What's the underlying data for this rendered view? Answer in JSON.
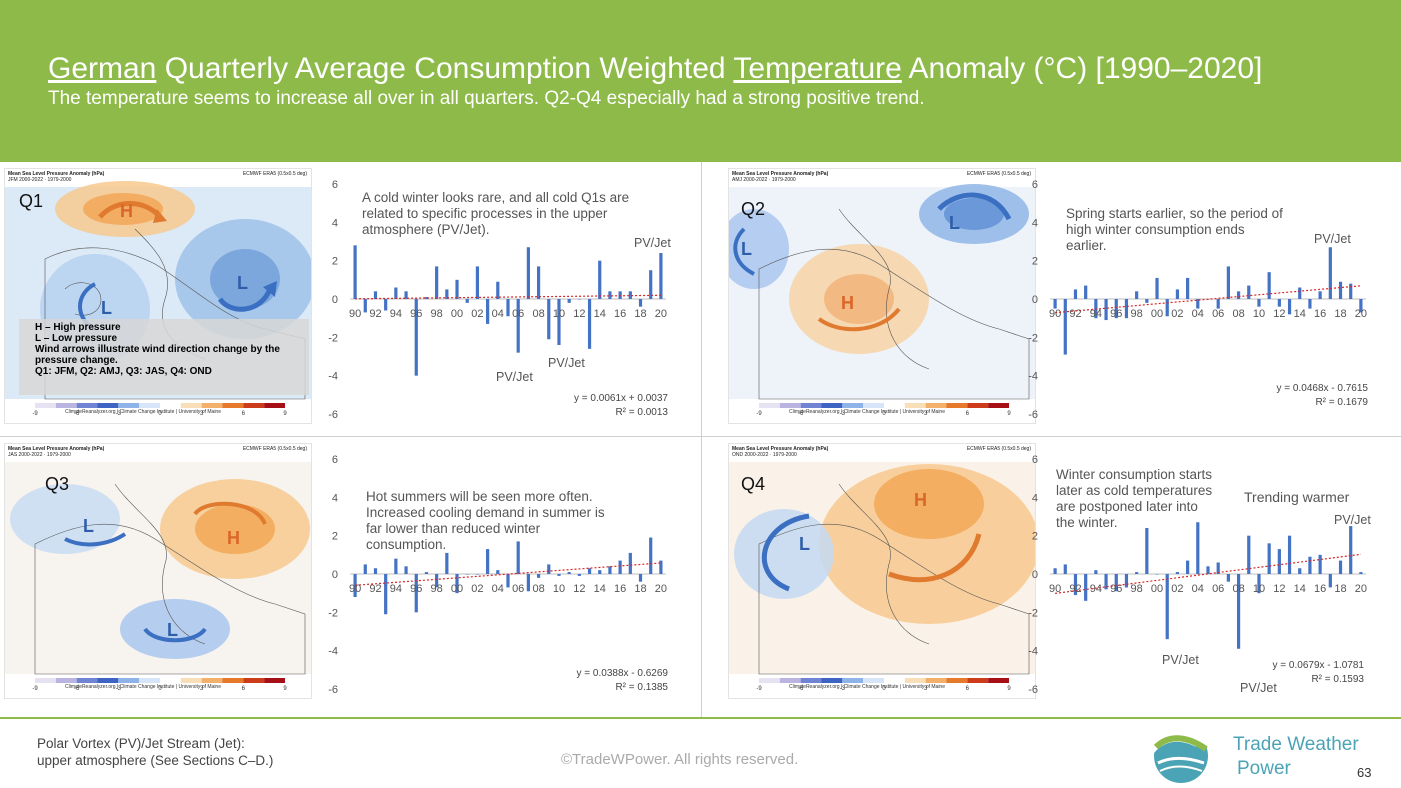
{
  "header": {
    "title_country": "German",
    "title_mid": " Quarterly Average Consumption Weighted ",
    "title_temp": "Temperature",
    "title_tail": " Anomaly (°C) [1990–2020]",
    "subtitle": "The temperature seems to increase all over in all quarters. Q2-Q4 especially had a strong positive trend."
  },
  "map_common": {
    "title": "Mean Sea Level Pressure Anomaly (hPa)",
    "source": "ECMWF ERA5 (0.5x0.5 deg)",
    "credit": "ClimateReanalyzer.org | Climate Change Institute | University of Maine",
    "colorbar_ticks": [
      "-9",
      "-6",
      "-3",
      "0",
      "3",
      "6",
      "9"
    ]
  },
  "legend": {
    "line1": "H – High pressure",
    "line2": "L – Low pressure",
    "line3": "Wind arrows illustrate wind direction change by the pressure change.",
    "line4": "Q1: JFM, Q2: AMJ, Q3: JAS, Q4: OND"
  },
  "quarters": [
    {
      "label": "Q1",
      "map_period": "JFM 2000-2022 · 1979-2000",
      "pressure_labels": [
        "H",
        "L",
        "L"
      ],
      "note": "A cold winter looks rare, and all cold Q1s are related to specific processes in the upper atmosphere (PV/Jet).",
      "annotations": [
        "PV/Jet",
        "PV/Jet",
        "PV/Jet"
      ],
      "trend_eq": "y = 0.0061x + 0.0037",
      "trend_r2": "R² = 0.0013"
    },
    {
      "label": "Q2",
      "map_period": "AMJ 2000-2022 · 1979-2000",
      "pressure_labels": [
        "L",
        "L",
        "H"
      ],
      "note": "Spring starts earlier, so the period of high winter consumption ends earlier.",
      "annotations": [
        "PV/Jet"
      ],
      "trend_eq": "y = 0.0468x - 0.7615",
      "trend_r2": "R² = 0.1679"
    },
    {
      "label": "Q3",
      "map_period": "JAS 2000-2022 · 1979-2000",
      "pressure_labels": [
        "L",
        "H",
        "L"
      ],
      "note": "Hot summers will be seen more often. Increased cooling demand in summer is far lower than reduced winter consumption.",
      "annotations": [],
      "trend_eq": "y = 0.0388x - 0.6269",
      "trend_r2": "R² = 0.1385"
    },
    {
      "label": "Q4",
      "map_period": "OND 2000-2022 · 1979-2000",
      "pressure_labels": [
        "L",
        "H"
      ],
      "note": "Winter consumption starts later as cold temperatures are postponed later into the winter.",
      "annotations": [
        "Trending warmer",
        "PV/Jet",
        "PV/Jet",
        "PV/Jet"
      ],
      "trend_eq": "y = 0.0679x - 1.0781",
      "trend_r2": "R² = 0.1593"
    }
  ],
  "chart_data": [
    {
      "type": "bar",
      "title": "Q1",
      "x": [
        1990,
        1991,
        1992,
        1993,
        1994,
        1995,
        1996,
        1997,
        1998,
        1999,
        2000,
        2001,
        2002,
        2003,
        2004,
        2005,
        2006,
        2007,
        2008,
        2009,
        2010,
        2011,
        2012,
        2013,
        2014,
        2015,
        2016,
        2017,
        2018,
        2019,
        2020
      ],
      "tick_labels": [
        "90",
        "92",
        "94",
        "96",
        "98",
        "00",
        "02",
        "04",
        "06",
        "08",
        "10",
        "12",
        "14",
        "16",
        "18",
        "20"
      ],
      "values": [
        2.8,
        -0.7,
        0.4,
        -0.6,
        0.6,
        0.4,
        -4.0,
        0.1,
        1.7,
        0.5,
        1.0,
        -0.2,
        1.7,
        -1.3,
        0.9,
        -0.9,
        -2.8,
        2.7,
        1.7,
        -2.1,
        -2.4,
        -0.2,
        0.0,
        -2.6,
        2.0,
        0.4,
        0.4,
        0.4,
        -0.4,
        1.5,
        2.4
      ],
      "ylim": [
        -6,
        6
      ],
      "yticks": [
        -6,
        -4,
        -2,
        0,
        2,
        4,
        6
      ],
      "trend": {
        "slope": 0.0061,
        "intercept": 0.0037
      }
    },
    {
      "type": "bar",
      "title": "Q2",
      "x": [
        1990,
        1991,
        1992,
        1993,
        1994,
        1995,
        1996,
        1997,
        1998,
        1999,
        2000,
        2001,
        2002,
        2003,
        2004,
        2005,
        2006,
        2007,
        2008,
        2009,
        2010,
        2011,
        2012,
        2013,
        2014,
        2015,
        2016,
        2017,
        2018,
        2019,
        2020
      ],
      "tick_labels": [
        "90",
        "92",
        "94",
        "96",
        "98",
        "00",
        "02",
        "04",
        "06",
        "08",
        "10",
        "12",
        "14",
        "16",
        "18",
        "20"
      ],
      "values": [
        -0.5,
        -2.9,
        0.5,
        0.7,
        -1.0,
        -1.1,
        -1.0,
        -1.0,
        0.4,
        -0.2,
        1.1,
        -0.9,
        0.5,
        1.1,
        -0.5,
        0.0,
        -0.5,
        1.7,
        0.4,
        0.7,
        -0.4,
        1.4,
        -0.4,
        -0.8,
        0.6,
        -0.5,
        0.4,
        2.7,
        0.9,
        0.8,
        -0.7
      ],
      "ylim": [
        -6,
        6
      ],
      "yticks": [
        -6,
        -4,
        -2,
        0,
        2,
        4,
        6
      ],
      "trend": {
        "slope": 0.0468,
        "intercept": -0.7615
      }
    },
    {
      "type": "bar",
      "title": "Q3",
      "x": [
        1990,
        1991,
        1992,
        1993,
        1994,
        1995,
        1996,
        1997,
        1998,
        1999,
        2000,
        2001,
        2002,
        2003,
        2004,
        2005,
        2006,
        2007,
        2008,
        2009,
        2010,
        2011,
        2012,
        2013,
        2014,
        2015,
        2016,
        2017,
        2018,
        2019,
        2020
      ],
      "tick_labels": [
        "90",
        "92",
        "94",
        "96",
        "98",
        "00",
        "02",
        "04",
        "06",
        "08",
        "10",
        "12",
        "14",
        "16",
        "18",
        "20"
      ],
      "values": [
        -1.2,
        0.5,
        0.3,
        -2.1,
        0.8,
        0.4,
        -2.0,
        0.1,
        -0.7,
        1.1,
        -1.0,
        0.0,
        0.0,
        1.3,
        0.2,
        -0.7,
        1.7,
        -0.9,
        -0.2,
        0.5,
        -0.1,
        0.1,
        -0.1,
        0.3,
        0.2,
        0.4,
        0.7,
        1.1,
        -0.4,
        1.9,
        0.7
      ],
      "ylim": [
        -6,
        6
      ],
      "yticks": [
        -6,
        -4,
        -2,
        0,
        2,
        4,
        6
      ],
      "trend": {
        "slope": 0.0388,
        "intercept": -0.6269
      }
    },
    {
      "type": "bar",
      "title": "Q4",
      "x": [
        1990,
        1991,
        1992,
        1993,
        1994,
        1995,
        1996,
        1997,
        1998,
        1999,
        2000,
        2001,
        2002,
        2003,
        2004,
        2005,
        2006,
        2007,
        2008,
        2009,
        2010,
        2011,
        2012,
        2013,
        2014,
        2015,
        2016,
        2017,
        2018,
        2019,
        2020
      ],
      "tick_labels": [
        "90",
        "92",
        "94",
        "96",
        "98",
        "00",
        "02",
        "04",
        "06",
        "08",
        "10",
        "12",
        "14",
        "16",
        "18",
        "20"
      ],
      "values": [
        0.3,
        0.5,
        -1.1,
        -1.4,
        0.2,
        -0.8,
        -0.9,
        -0.7,
        0.1,
        2.4,
        0.0,
        -3.4,
        0.1,
        0.7,
        2.7,
        0.4,
        0.6,
        -0.4,
        -3.9,
        2.0,
        -1.0,
        1.6,
        1.3,
        2.0,
        0.3,
        0.9,
        1.0,
        -0.7,
        0.7,
        2.5,
        0.1
      ],
      "ylim": [
        -6,
        6
      ],
      "yticks": [
        -6,
        -4,
        -2,
        0,
        2,
        4,
        6
      ],
      "trend": {
        "slope": 0.0679,
        "intercept": -1.0781
      }
    }
  ],
  "footer": {
    "note_line1": "Polar Vortex (PV)/Jet Stream (Jet):",
    "note_line2": "upper atmosphere (See Sections C–D.)",
    "copyright": "©TradeWPower. All rights reserved.",
    "brand_line1": "Trade Weather",
    "brand_line2": "Power",
    "page_number": "63"
  },
  "colors": {
    "header": "#8dba48",
    "bar": "#4472c4",
    "trend": "#d62728",
    "brand": "#4aa4b6"
  }
}
